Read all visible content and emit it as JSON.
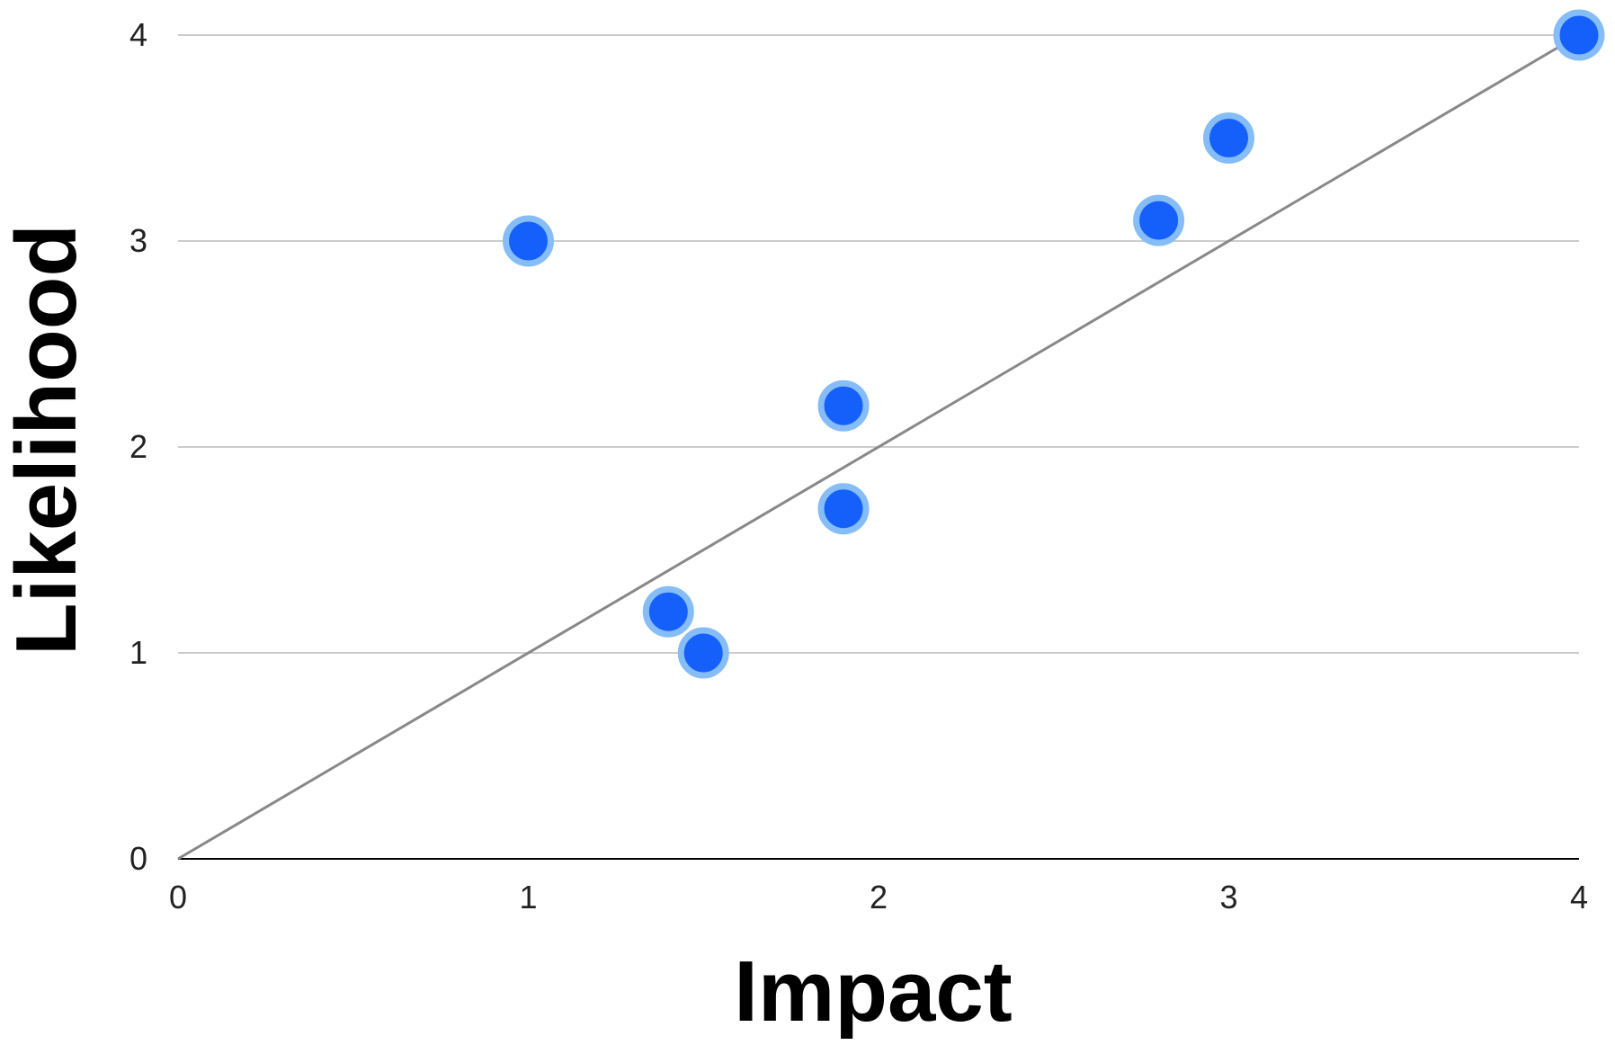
{
  "chart_data": {
    "type": "scatter",
    "xlabel": "Impact",
    "ylabel": "Likelihood",
    "xlim": [
      0,
      4
    ],
    "ylim": [
      0,
      4
    ],
    "x_ticks": [
      "0",
      "1",
      "2",
      "3",
      "4"
    ],
    "y_ticks": [
      "0",
      "1",
      "2",
      "3",
      "4"
    ],
    "grid": "horizontal",
    "series": [
      {
        "points": [
          {
            "x": 1.0,
            "y": 3.0
          },
          {
            "x": 1.4,
            "y": 1.2
          },
          {
            "x": 1.5,
            "y": 1.0
          },
          {
            "x": 1.9,
            "y": 2.2
          },
          {
            "x": 1.9,
            "y": 1.7
          },
          {
            "x": 2.8,
            "y": 3.1
          },
          {
            "x": 3.0,
            "y": 3.5
          },
          {
            "x": 4.0,
            "y": 4.0
          }
        ]
      }
    ],
    "trendline": {
      "from": {
        "x": 0,
        "y": 0
      },
      "to": {
        "x": 4,
        "y": 4
      }
    },
    "colors": {
      "point_fill": "#1560fb",
      "point_stroke": "#86bdf6",
      "trendline": "#888888",
      "gridline": "#bbbbbb",
      "axis": "#000000"
    }
  }
}
